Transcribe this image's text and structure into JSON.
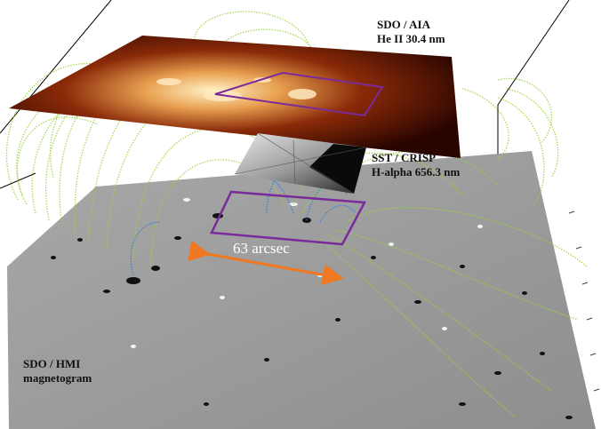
{
  "labels": {
    "aia_line1": "SDO / AIA",
    "aia_line2": "He II 30.4 nm",
    "sst_line1": "SST / CRISP",
    "sst_line2": "H-alpha 656.3 nm",
    "hmi_line1": "SDO / HMI",
    "hmi_line2": "magnetogram",
    "scale": "63 arcsec"
  },
  "colors": {
    "magnetogram_gray": "#9a9a9a",
    "aia_dark": "#3a0800",
    "aia_bright": "#ffe6b0",
    "fieldline_green": "#9bd23c",
    "fieldline_blue": "#2f7fd8",
    "fov_box": "#7a2a9a",
    "scale_arrow": "#f07820"
  }
}
